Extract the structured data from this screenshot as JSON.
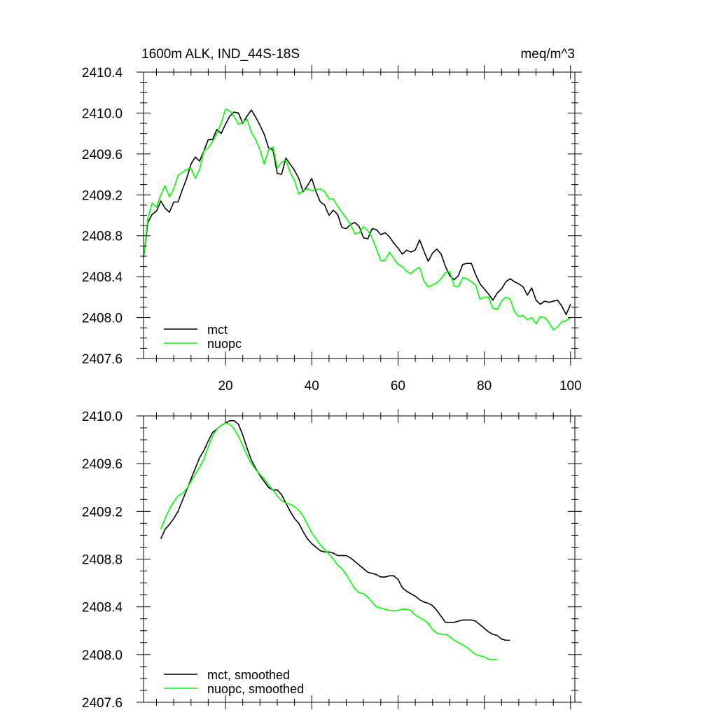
{
  "chart_data": [
    {
      "type": "line",
      "title_left": "1600m ALK, IND_44S-18S",
      "title_right": "meq/m^3",
      "xlabel": "",
      "ylabel": "",
      "xlim": [
        1,
        101
      ],
      "ylim": [
        2407.6,
        2410.4
      ],
      "xticks": [
        20,
        40,
        60,
        80,
        100
      ],
      "xtick_labels": [
        "20",
        "40",
        "60",
        "80",
        "100"
      ],
      "yticks": [
        2407.6,
        2408.0,
        2408.4,
        2408.8,
        2409.2,
        2409.6,
        2410.0,
        2410.4
      ],
      "ytick_labels": [
        "2407.6",
        "2408.0",
        "2408.4",
        "2408.8",
        "2409.2",
        "2409.6",
        "2410.0",
        "2410.4"
      ],
      "legend_position": "bottom-left",
      "series": [
        {
          "name": "mct",
          "color": "#000000",
          "x_start": 1,
          "values": [
            2408.58,
            2408.93,
            2409.01,
            2409.04,
            2409.14,
            2409.07,
            2409.03,
            2409.13,
            2409.13,
            2409.25,
            2409.36,
            2409.5,
            2409.57,
            2409.53,
            2409.63,
            2409.74,
            2409.74,
            2409.84,
            2409.8,
            2409.89,
            2409.97,
            2410.01,
            2410.0,
            2409.9,
            2409.97,
            2410.03,
            2409.96,
            2409.88,
            2409.79,
            2409.66,
            2409.64,
            2409.41,
            2409.4,
            2409.56,
            2409.5,
            2409.44,
            2409.36,
            2409.23,
            2409.29,
            2409.36,
            2409.23,
            2409.13,
            2409.1,
            2409.0,
            2409.05,
            2409.01,
            2408.88,
            2408.87,
            2408.91,
            2408.93,
            2408.89,
            2408.78,
            2408.77,
            2408.87,
            2408.86,
            2408.81,
            2408.83,
            2408.79,
            2408.73,
            2408.68,
            2408.62,
            2408.66,
            2408.64,
            2408.66,
            2408.76,
            2408.65,
            2408.55,
            2408.63,
            2408.67,
            2408.62,
            2408.5,
            2408.41,
            2408.37,
            2408.41,
            2408.52,
            2408.53,
            2408.53,
            2408.42,
            2408.33,
            2408.28,
            2408.23,
            2408.17,
            2408.24,
            2408.28,
            2408.35,
            2408.38,
            2408.35,
            2408.33,
            2408.3,
            2408.22,
            2408.29,
            2408.17,
            2408.13,
            2408.16,
            2408.15,
            2408.16,
            2408.17,
            2408.11,
            2408.03,
            2408.13
          ]
        },
        {
          "name": "nuopc",
          "color": "#00ff00",
          "x_start": 1,
          "values": [
            2408.58,
            2408.97,
            2409.12,
            2409.08,
            2409.2,
            2409.29,
            2409.18,
            2409.26,
            2409.39,
            2409.42,
            2409.45,
            2409.46,
            2409.36,
            2409.45,
            2409.63,
            2409.66,
            2409.72,
            2409.8,
            2409.9,
            2410.04,
            2410.02,
            2409.97,
            2409.89,
            2409.91,
            2409.94,
            2409.81,
            2409.74,
            2409.64,
            2409.5,
            2409.64,
            2409.67,
            2409.46,
            2409.52,
            2409.54,
            2409.42,
            2409.34,
            2409.21,
            2409.24,
            2409.26,
            2409.24,
            2409.25,
            2409.26,
            2409.23,
            2409.16,
            2409.16,
            2409.09,
            2409.03,
            2408.97,
            2408.91,
            2408.82,
            2408.83,
            2408.89,
            2408.85,
            2408.78,
            2408.67,
            2408.56,
            2408.56,
            2408.64,
            2408.58,
            2408.52,
            2408.5,
            2408.45,
            2408.43,
            2408.47,
            2408.49,
            2408.36,
            2408.3,
            2408.32,
            2408.34,
            2408.38,
            2408.44,
            2408.45,
            2408.31,
            2408.3,
            2408.39,
            2408.38,
            2408.35,
            2408.32,
            2408.18,
            2408.2,
            2408.2,
            2408.09,
            2408.08,
            2408.16,
            2408.2,
            2408.18,
            2408.06,
            2408.01,
            2408.02,
            2407.98,
            2408.0,
            2407.94,
            2408.01,
            2408.0,
            2407.95,
            2407.88,
            2407.91,
            2407.96,
            2407.97,
            2408.0
          ]
        }
      ]
    },
    {
      "type": "line",
      "title_left": "",
      "title_right": "",
      "xlabel": "",
      "ylabel": "",
      "xlim": [
        1,
        101
      ],
      "ylim": [
        2407.6,
        2410.0
      ],
      "xticks": [
        20,
        40,
        60,
        80,
        100
      ],
      "yticks": [
        2407.6,
        2408.0,
        2408.4,
        2408.8,
        2409.2,
        2409.6,
        2410.0
      ],
      "ytick_labels": [
        "2407.6",
        "2408.0",
        "2408.4",
        "2408.8",
        "2409.2",
        "2409.6",
        "2410.0"
      ],
      "legend_position": "bottom-left",
      "series": [
        {
          "name": "mct, smoothed",
          "color": "#000000",
          "x_start": 5,
          "values": [
            2408.97,
            2409.05,
            2409.09,
            2409.14,
            2409.2,
            2409.29,
            2409.38,
            2409.47,
            2409.56,
            2409.65,
            2409.71,
            2409.79,
            2409.86,
            2409.89,
            2409.92,
            2409.94,
            2409.96,
            2409.96,
            2409.93,
            2409.84,
            2409.73,
            2409.63,
            2409.56,
            2409.5,
            2409.45,
            2409.4,
            2409.38,
            2409.38,
            2409.34,
            2409.27,
            2409.2,
            2409.14,
            2409.1,
            2409.03,
            2408.97,
            2408.93,
            2408.9,
            2408.87,
            2408.86,
            2408.86,
            2408.85,
            2408.83,
            2408.83,
            2408.83,
            2408.81,
            2408.78,
            2408.75,
            2408.72,
            2408.69,
            2408.68,
            2408.67,
            2408.65,
            2408.65,
            2408.66,
            2408.66,
            2408.63,
            2408.56,
            2408.53,
            2408.51,
            2408.49,
            2408.46,
            2408.44,
            2408.43,
            2408.41,
            2408.37,
            2408.32,
            2408.27,
            2408.27,
            2408.27,
            2408.28,
            2408.29,
            2408.29,
            2408.29,
            2408.28,
            2408.25,
            2408.22,
            2408.19,
            2408.17,
            2408.16,
            2408.13,
            2408.12,
            2408.12
          ]
        },
        {
          "name": "nuopc, smoothed",
          "color": "#00ff00",
          "x_start": 5,
          "values": [
            2409.05,
            2409.14,
            2409.22,
            2409.28,
            2409.33,
            2409.35,
            2409.39,
            2409.45,
            2409.51,
            2409.57,
            2409.64,
            2409.74,
            2409.83,
            2409.89,
            2409.92,
            2409.94,
            2409.93,
            2409.89,
            2409.83,
            2409.75,
            2409.67,
            2409.6,
            2409.55,
            2409.51,
            2409.47,
            2409.42,
            2409.38,
            2409.33,
            2409.29,
            2409.27,
            2409.26,
            2409.24,
            2409.21,
            2409.16,
            2409.09,
            2409.02,
            2408.97,
            2408.92,
            2408.88,
            2408.84,
            2408.8,
            2408.75,
            2408.72,
            2408.67,
            2408.61,
            2408.55,
            2408.52,
            2408.51,
            2408.48,
            2408.44,
            2408.4,
            2408.39,
            2408.38,
            2408.37,
            2408.37,
            2408.37,
            2408.38,
            2408.38,
            2408.37,
            2408.33,
            2408.31,
            2408.29,
            2408.26,
            2408.21,
            2408.18,
            2408.17,
            2408.17,
            2408.15,
            2408.12,
            2408.1,
            2408.08,
            2408.06,
            2408.03,
            2408.0,
            2407.99,
            2407.98,
            2407.96,
            2407.96,
            2407.96
          ]
        }
      ]
    }
  ]
}
